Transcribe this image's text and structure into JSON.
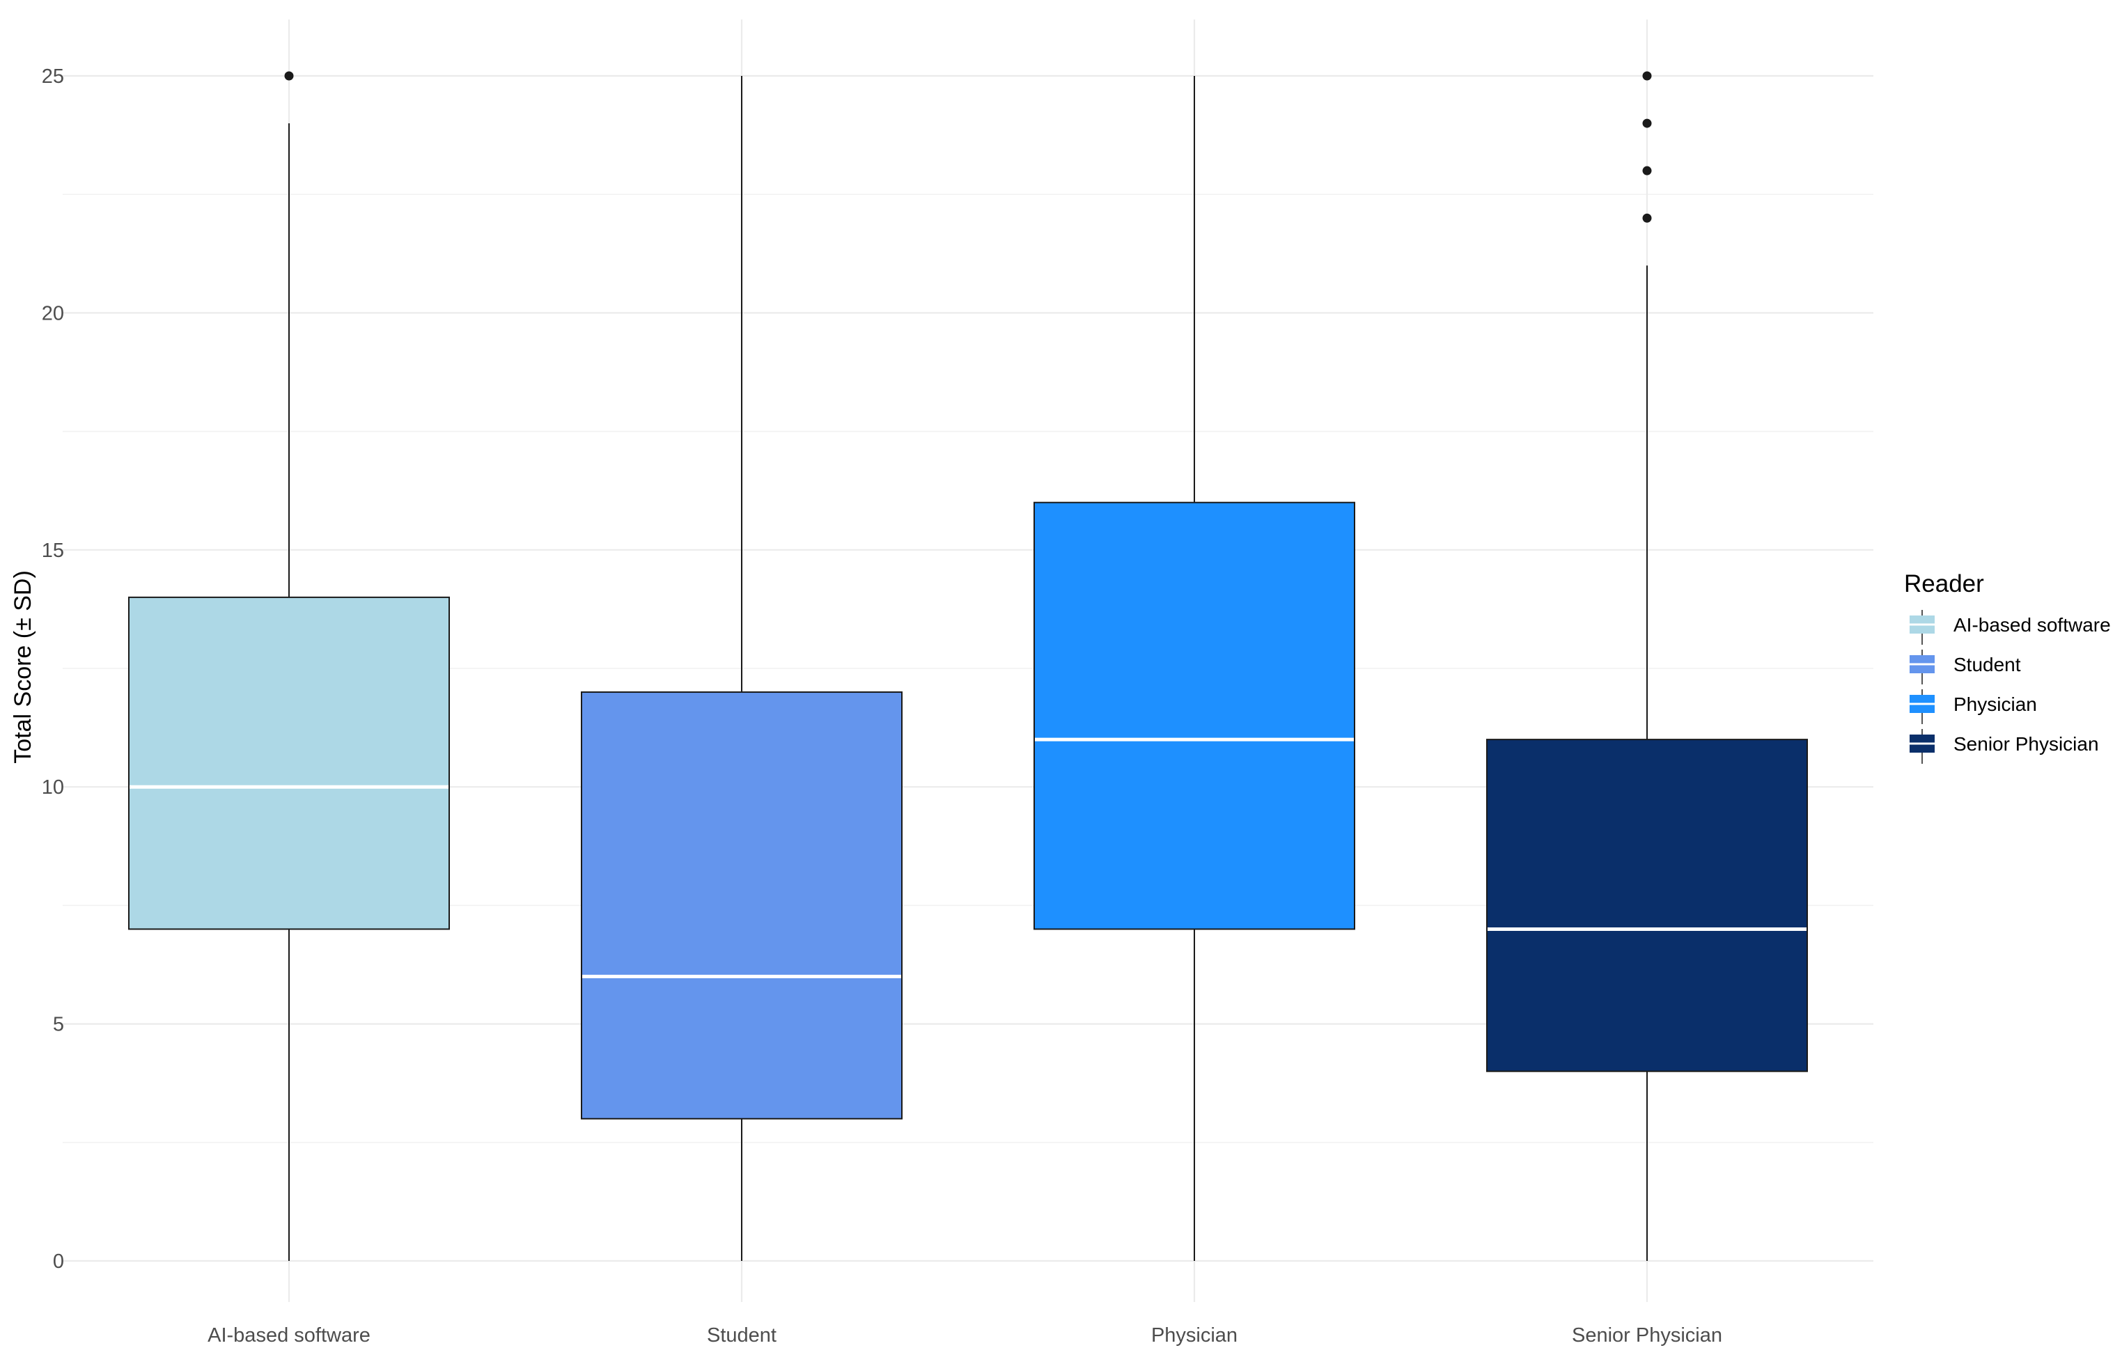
{
  "chart_data": {
    "type": "boxplot",
    "title": "",
    "xlabel": "",
    "ylabel": "Total Score (± SD)",
    "ylim": [
      0,
      25
    ],
    "yticks": [
      0,
      5,
      10,
      15,
      20,
      25
    ],
    "grid": true,
    "legend": {
      "title": "Reader",
      "position": "right"
    },
    "categories": [
      "AI-based software",
      "Student",
      "Physician",
      "Senior Physician"
    ],
    "series": [
      {
        "name": "AI-based software",
        "color": "#ADD8E6",
        "min": 0,
        "q1": 7,
        "median": 10,
        "q3": 14,
        "max": 24,
        "outliers": [
          25
        ]
      },
      {
        "name": "Student",
        "color": "#6495ED",
        "min": 0,
        "q1": 3,
        "median": 6,
        "q3": 12,
        "max": 25,
        "outliers": []
      },
      {
        "name": "Physician",
        "color": "#1E90FF",
        "min": 0,
        "q1": 7,
        "median": 11,
        "q3": 16,
        "max": 25,
        "outliers": []
      },
      {
        "name": "Senior Physician",
        "color": "#0A2F6A",
        "min": 0,
        "q1": 4,
        "median": 7,
        "q3": 11,
        "max": 21,
        "outliers": [
          22,
          23,
          24,
          25
        ]
      }
    ]
  }
}
